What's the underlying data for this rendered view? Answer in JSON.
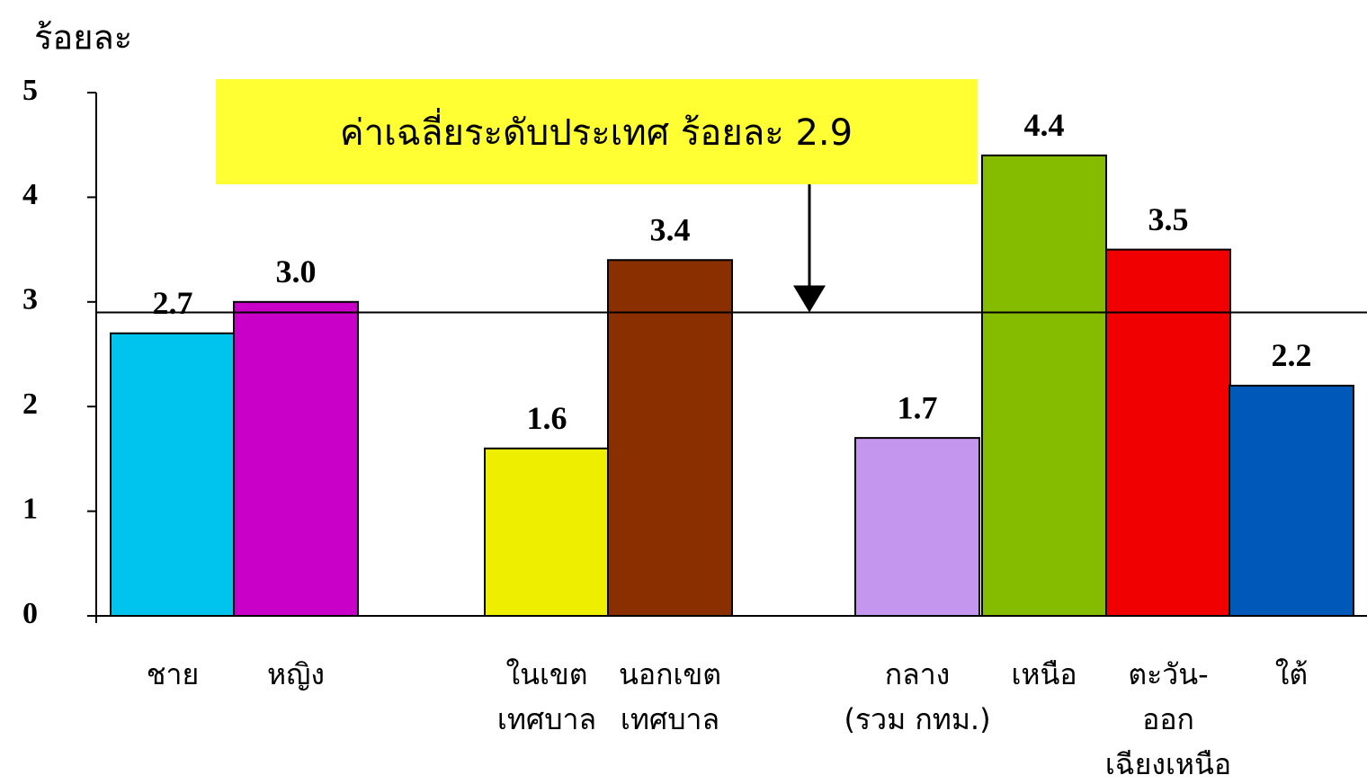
{
  "chart_data": {
    "type": "bar",
    "y_axis_label": "ร้อยละ",
    "categories": [
      "ชาย",
      "หญิง",
      "ในเขต\nเทศบาล",
      "นอกเขต\nเทศบาล",
      "กลาง\n(รวม กทม.)",
      "เหนือ",
      "ตะวัน-\nออก\nเฉียงเหนือ",
      "ใต้"
    ],
    "values": [
      2.7,
      3,
      1.6,
      3.4,
      1.7,
      4.4,
      3.5,
      2.2
    ],
    "value_labels": [
      "2.7",
      "3.0",
      "1.6",
      "3.4",
      "1.7",
      "4.4",
      "3.5",
      "2.2"
    ],
    "colors": [
      "#00c4ee",
      "#c800c8",
      "#eeee00",
      "#8a3000",
      "#c596ee",
      "#86bc00",
      "#f00000",
      "#0058b8"
    ],
    "ylim": [
      0,
      5
    ],
    "yticks": [
      0,
      1,
      2,
      3,
      4,
      5
    ],
    "reference_line": {
      "value": 2.9,
      "label": "ค่าเฉลี่ยระดับประเทศ ร้อยละ 2.9"
    }
  }
}
